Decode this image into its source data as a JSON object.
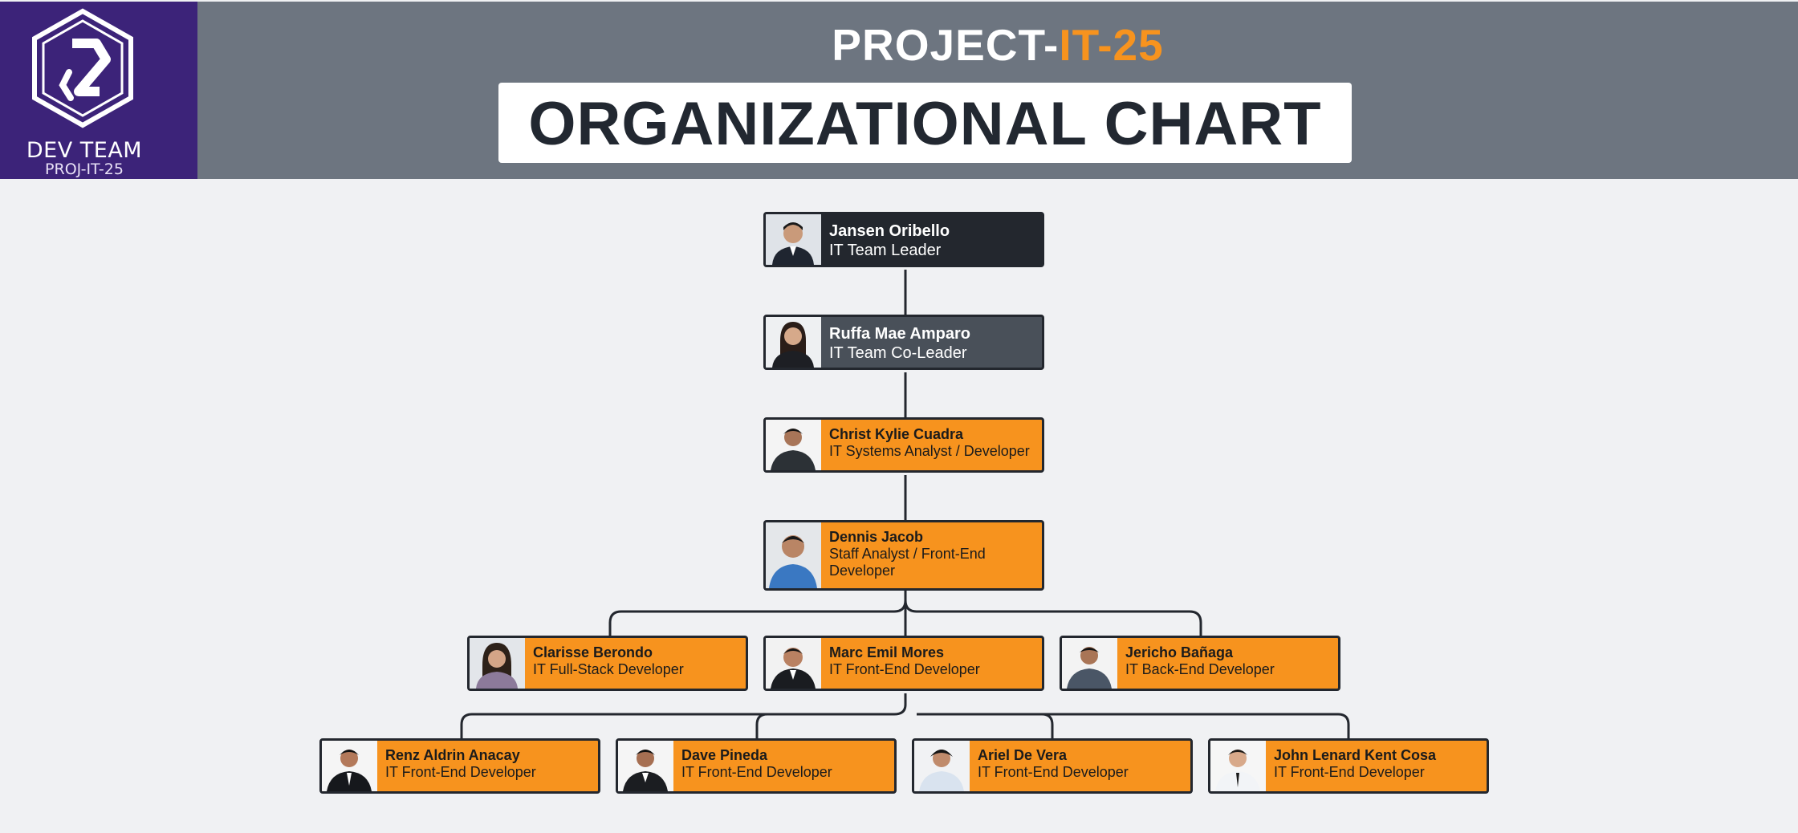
{
  "logo": {
    "team": "DEV TEAM",
    "code": "PROJ-IT-25"
  },
  "header": {
    "title_prefix": "PROJECT-",
    "title_accent": "IT-25",
    "subtitle": "ORGANIZATIONAL CHART"
  },
  "colors": {
    "accent": "#f7931e",
    "header_bg": "#6d7580",
    "logo_bg": "#3c2379",
    "dark": "#23272e",
    "slate": "#495059"
  },
  "members": [
    {
      "name": "Jansen Oribello",
      "role": "IT Team Leader"
    },
    {
      "name": "Ruffa Mae Amparo",
      "role": "IT Team Co-Leader"
    },
    {
      "name": "Christ Kylie Cuadra",
      "role": "IT Systems Analyst / Developer"
    },
    {
      "name": "Dennis Jacob",
      "role": "Staff Analyst / Front-End Developer"
    },
    {
      "name": "Clarisse Berondo",
      "role": "IT Full-Stack Developer"
    },
    {
      "name": "Marc Emil Mores",
      "role": "IT Front-End Developer"
    },
    {
      "name": "Jericho Bañaga",
      "role": "IT Back-End Developer"
    },
    {
      "name": "Renz Aldrin Anacay",
      "role": "IT Front-End Developer"
    },
    {
      "name": "Dave Pineda",
      "role": "IT Front-End Developer"
    },
    {
      "name": "Ariel De Vera",
      "role": "IT Front-End Developer"
    },
    {
      "name": "John Lenard Kent Cosa",
      "role": "IT Front-End Developer"
    }
  ]
}
